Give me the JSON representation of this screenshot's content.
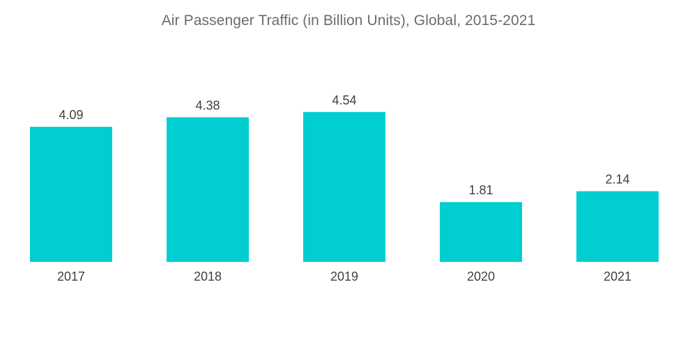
{
  "chart_data": {
    "type": "bar",
    "title": "Air Passenger Traffic (in Billion Units), Global, 2015-2021",
    "categories": [
      "2017",
      "2018",
      "2019",
      "2020",
      "2021"
    ],
    "values": [
      4.09,
      4.38,
      4.54,
      1.81,
      2.14
    ],
    "value_labels": [
      "4.09",
      "4.38",
      "4.54",
      "1.81",
      "2.14"
    ],
    "xlabel": "",
    "ylabel": "",
    "ylim": [
      0,
      5
    ],
    "grid": false,
    "bar_color": "#00CED1"
  }
}
